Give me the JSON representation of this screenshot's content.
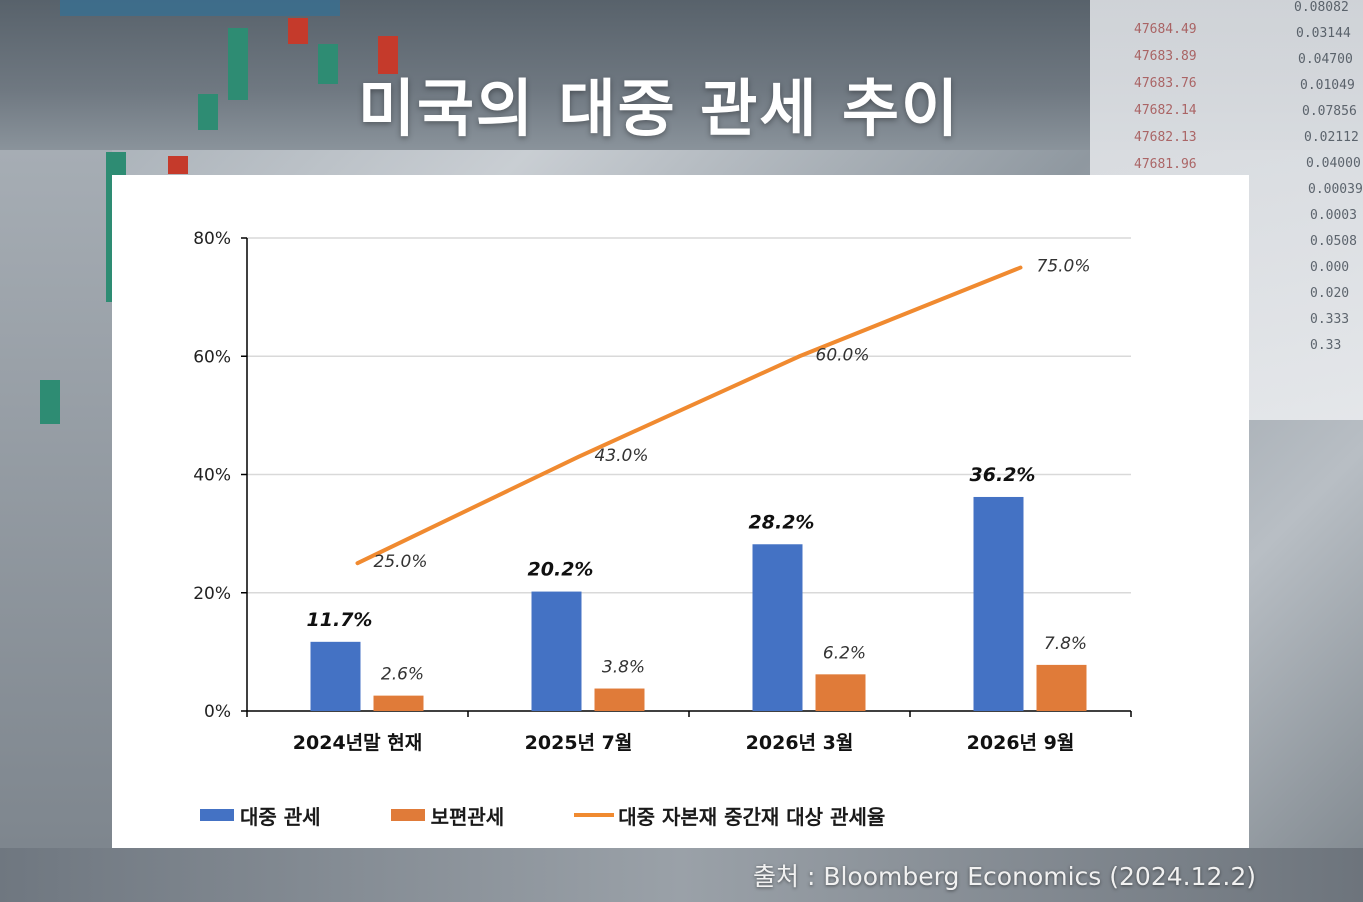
{
  "title": "미국의 대중 관세 추이",
  "source": "출처 : Bloomberg Economics (2024.12.2)",
  "colors": {
    "bar_china": "#4472c4",
    "bar_universal": "#e07b39",
    "line_capital": "#f08a30",
    "axis": "#000000",
    "grid": "#d9d9d9"
  },
  "chart_data": {
    "type": "bar",
    "categories": [
      "2024년말 현재",
      "2025년 7월",
      "2026년 3월",
      "2026년 9월"
    ],
    "y_ticks": [
      "0%",
      "20%",
      "40%",
      "60%",
      "80%"
    ],
    "ylim": [
      0,
      80
    ],
    "grid": true,
    "legend_position": "bottom",
    "series": [
      {
        "name": "대중 관세",
        "type": "bar",
        "color": "#4472c4",
        "values": [
          11.7,
          20.2,
          28.2,
          36.2
        ],
        "labels": [
          "11.7%",
          "20.2%",
          "28.2%",
          "36.2%"
        ]
      },
      {
        "name": "보편관세",
        "type": "bar",
        "color": "#e07b39",
        "values": [
          2.6,
          3.8,
          6.2,
          7.8
        ],
        "labels": [
          "2.6%",
          "3.8%",
          "6.2%",
          "7.8%"
        ]
      },
      {
        "name": "대중 자본재 중간재 대상 관세율",
        "type": "line",
        "color": "#f08a30",
        "values": [
          25.0,
          43.0,
          60.0,
          75.0
        ],
        "labels": [
          "25.0%",
          "43.0%",
          "60.0%",
          "75.0%"
        ]
      }
    ]
  },
  "background_numbers": {
    "col1": [
      "47684.49",
      "47683.89",
      "47683.76",
      "47682.14",
      "47682.13",
      "47681.96"
    ],
    "col2": [
      "0.08082",
      "0.03144",
      "0.04700",
      "0.01049",
      "0.07856",
      "0.02112",
      "0.04000",
      "0.00039",
      "0.0003",
      "0.0508",
      "0.000",
      "0.020",
      "0.333",
      "0.33"
    ]
  }
}
